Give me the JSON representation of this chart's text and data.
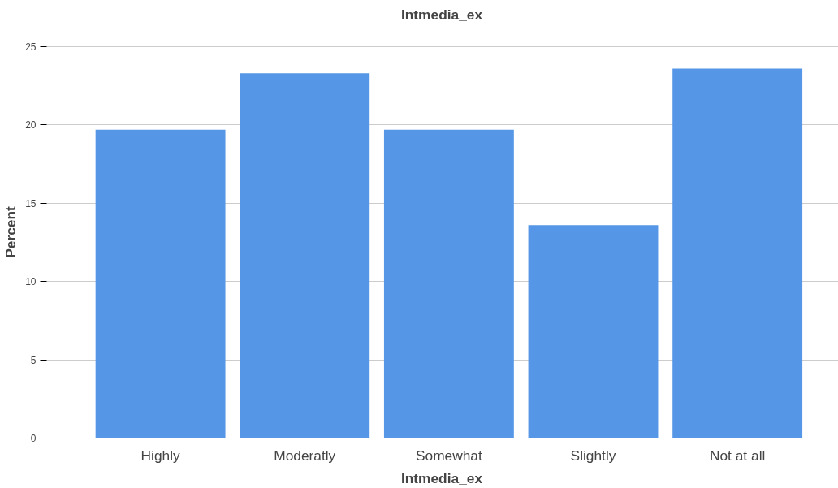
{
  "chart_data": {
    "type": "bar",
    "title": "Intmedia_ex",
    "xlabel": "Intmedia_ex",
    "ylabel": "Percent",
    "categories": [
      "Highly",
      "Moderatly",
      "Somewhat",
      "Slightly",
      "Not at all"
    ],
    "values": [
      19.7,
      23.3,
      19.7,
      13.6,
      23.6
    ],
    "color": "#5596e6",
    "ylim": [
      0,
      26.3
    ],
    "yticks": [
      0,
      5,
      10,
      15,
      20,
      25
    ],
    "grid": "y"
  }
}
